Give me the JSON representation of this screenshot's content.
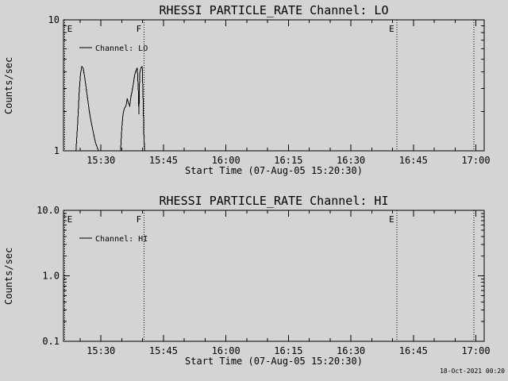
{
  "colors": {
    "background": "#d4d4d4",
    "foreground": "#000000"
  },
  "footer": {
    "timestamp": "18-Oct-2021 00:20"
  },
  "chart_data": [
    {
      "type": "line",
      "title": "RHESSI PARTICLE_RATE Channel: LO",
      "ylabel": "Counts/sec",
      "xlabel": "Start Time (07-Aug-05 15:20:30)",
      "yscale": "log",
      "ylim": [
        1,
        10
      ],
      "yticks": [
        {
          "v": 1,
          "label": "1"
        },
        {
          "v": 10,
          "label": "10"
        }
      ],
      "xlim_minutes": [
        921,
        1022
      ],
      "xticks": [
        {
          "t": 930,
          "label": "15:30"
        },
        {
          "t": 945,
          "label": "15:45"
        },
        {
          "t": 960,
          "label": "16:00"
        },
        {
          "t": 975,
          "label": "16:15"
        },
        {
          "t": 990,
          "label": "16:30"
        },
        {
          "t": 1005,
          "label": "16:45"
        },
        {
          "t": 1020,
          "label": "17:00"
        }
      ],
      "legend": {
        "label": "Channel: LO"
      },
      "events": [
        {
          "label": "E",
          "t": 921.3
        },
        {
          "label": "F",
          "t": 940.3
        },
        {
          "label": "E",
          "t": 1001.0
        },
        {
          "label": "",
          "t": 1019.5
        }
      ],
      "series": [
        {
          "name": "Channel: LO",
          "points": [
            [
              921,
              1
            ],
            [
              924,
              1
            ],
            [
              924.4,
              1.6
            ],
            [
              924.8,
              2.9
            ],
            [
              925.1,
              3.9
            ],
            [
              925.4,
              4.4
            ],
            [
              925.7,
              4.3
            ],
            [
              926,
              3.8
            ],
            [
              926.4,
              3.1
            ],
            [
              926.8,
              2.5
            ],
            [
              927.2,
              2
            ],
            [
              927.6,
              1.7
            ],
            [
              928.1,
              1.4
            ],
            [
              928.7,
              1.15
            ],
            [
              929.4,
              1
            ],
            [
              934.7,
              1
            ],
            [
              935,
              1.5
            ],
            [
              935.3,
              1.9
            ],
            [
              935.6,
              2.1
            ],
            [
              936,
              2.2
            ],
            [
              936.3,
              2.5
            ],
            [
              936.6,
              2.3
            ],
            [
              936.9,
              2.2
            ],
            [
              937.2,
              2.6
            ],
            [
              937.5,
              2.9
            ],
            [
              937.8,
              3.3
            ],
            [
              938.1,
              3.8
            ],
            [
              938.4,
              4.1
            ],
            [
              938.7,
              4.3
            ],
            [
              938.95,
              3
            ],
            [
              939.1,
              1.9
            ],
            [
              939.3,
              3.9
            ],
            [
              939.6,
              4.3
            ],
            [
              939.9,
              4.4
            ],
            [
              940.1,
              2.6
            ],
            [
              940.3,
              1.3
            ],
            [
              940.5,
              1
            ],
            [
              1021,
              1
            ]
          ]
        }
      ]
    },
    {
      "type": "line",
      "title": "RHESSI PARTICLE_RATE Channel: HI",
      "ylabel": "Counts/sec",
      "xlabel": "Start Time (07-Aug-05 15:20:30)",
      "yscale": "log",
      "ylim": [
        0.1,
        10
      ],
      "yticks": [
        {
          "v": 0.1,
          "label": "0.1"
        },
        {
          "v": 1,
          "label": "1.0"
        },
        {
          "v": 10,
          "label": "10.0"
        }
      ],
      "xlim_minutes": [
        921,
        1022
      ],
      "xticks": [
        {
          "t": 930,
          "label": "15:30"
        },
        {
          "t": 945,
          "label": "15:45"
        },
        {
          "t": 960,
          "label": "16:00"
        },
        {
          "t": 975,
          "label": "16:15"
        },
        {
          "t": 990,
          "label": "16:30"
        },
        {
          "t": 1005,
          "label": "16:45"
        },
        {
          "t": 1020,
          "label": "17:00"
        }
      ],
      "legend": {
        "label": "Channel: HI"
      },
      "events": [
        {
          "label": "E",
          "t": 921.3
        },
        {
          "label": "F",
          "t": 940.3
        },
        {
          "label": "E",
          "t": 1001.0
        },
        {
          "label": "",
          "t": 1019.5
        }
      ],
      "series": [
        {
          "name": "Channel: HI",
          "points": [
            [
              921,
              0.1
            ],
            [
              1021,
              0.1
            ]
          ]
        }
      ]
    }
  ]
}
